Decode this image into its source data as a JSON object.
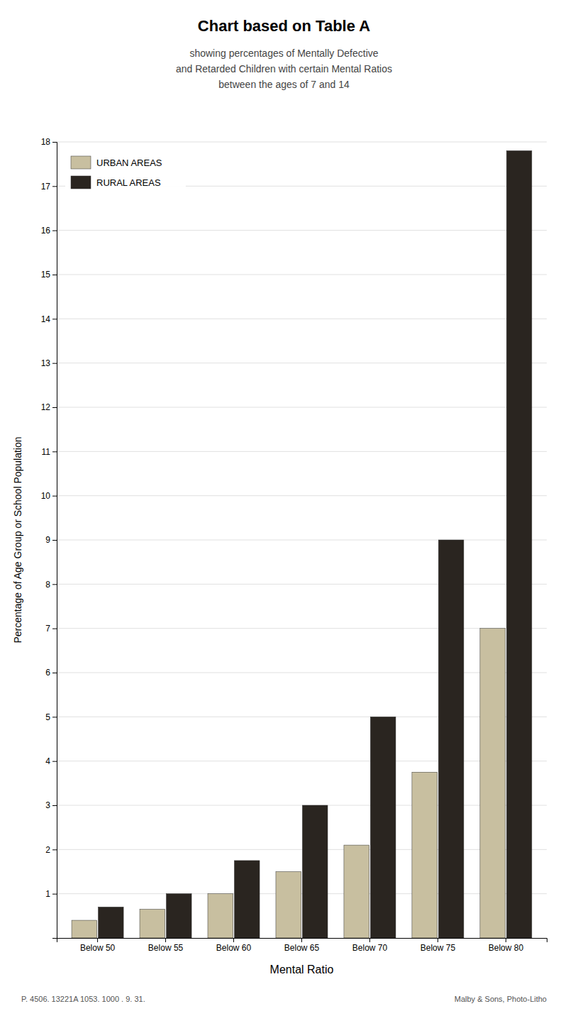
{
  "chart_data": {
    "type": "bar",
    "title": "Chart based on Table A",
    "subtitle": [
      "showing percentages of Mentally Defective",
      "and Retarded Children with certain Mental Ratios",
      "between the ages of 7 and 14"
    ],
    "xlabel": "Mental Ratio",
    "ylabel": "Percentage of Age Group or School Population",
    "categories": [
      "Below 50",
      "Below 55",
      "Below 60",
      "Below 65",
      "Below 70",
      "Below 75",
      "Below 80"
    ],
    "series": [
      {
        "name": "URBAN AREAS",
        "color": "#c8bfa0",
        "values": [
          0.4,
          0.65,
          1.0,
          1.5,
          2.1,
          3.75,
          7.0
        ]
      },
      {
        "name": "RURAL AREAS",
        "color": "#2a2520",
        "values": [
          0.7,
          1.0,
          1.75,
          3.0,
          5.0,
          9.0,
          17.8
        ]
      }
    ],
    "ylim": [
      0,
      18
    ],
    "yticks": [
      1,
      2,
      3,
      4,
      5,
      6,
      7,
      8,
      9,
      10,
      11,
      12,
      13,
      14,
      15,
      16,
      17,
      18
    ],
    "grid": true,
    "legend": "upper left",
    "annotations": [
      "P. 4506. 13221A 1053. 1000 . 9. 31.",
      "Malby & Sons, Photo-Litho"
    ]
  }
}
